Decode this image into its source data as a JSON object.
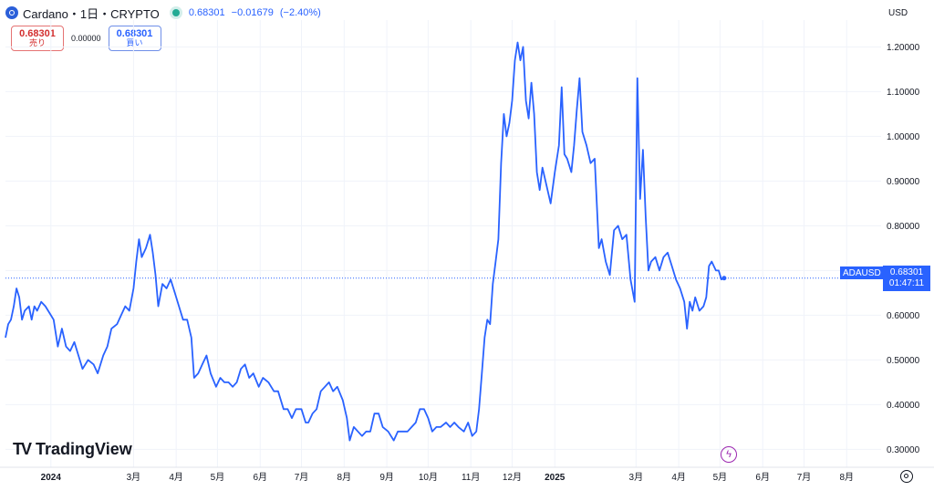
{
  "header": {
    "symbol": "Cardano・1日・CRYPTO",
    "last": "0.68301",
    "change": "−0.01679",
    "change_pct": "(−2.40%)"
  },
  "trade": {
    "sell_value": "0.68301",
    "sell_label": "売り",
    "spread": "0.00000",
    "buy_value": "0.68301",
    "buy_label": "買い"
  },
  "currency": "USD",
  "price_tag": {
    "ticker": "ADAUSD",
    "price": "0.68301",
    "countdown": "01:47:11"
  },
  "logo_text": "TradingView",
  "colors": {
    "line": "#2962ff",
    "accent": "#2962ff",
    "grid": "#f0f3fa"
  },
  "icons": [
    "cardano-logo-icon",
    "live-dot-icon",
    "tradingview-logo-icon",
    "bolt-icon",
    "settings-icon"
  ],
  "chart_data": {
    "type": "line",
    "title": "Cardano・1日・CRYPTO",
    "ylim": [
      0.26,
      1.26
    ],
    "yticks": [
      "0.30000",
      "0.40000",
      "0.50000",
      "0.60000",
      "0.70000",
      "0.80000",
      "0.90000",
      "1.00000",
      "1.10000",
      "1.20000"
    ],
    "xticks": [
      {
        "label": "2024",
        "date": "2024-01-01",
        "bold": true
      },
      {
        "label": "3月",
        "date": "2024-03-01"
      },
      {
        "label": "4月",
        "date": "2024-04-01"
      },
      {
        "label": "5月",
        "date": "2024-05-01"
      },
      {
        "label": "6月",
        "date": "2024-06-01"
      },
      {
        "label": "7月",
        "date": "2024-07-01"
      },
      {
        "label": "8月",
        "date": "2024-08-01"
      },
      {
        "label": "9月",
        "date": "2024-09-01"
      },
      {
        "label": "10月",
        "date": "2024-10-01"
      },
      {
        "label": "11月",
        "date": "2024-11-01"
      },
      {
        "label": "12月",
        "date": "2024-12-01"
      },
      {
        "label": "2025",
        "date": "2025-01-01",
        "bold": true
      },
      {
        "label": "3月",
        "date": "2025-03-01"
      },
      {
        "label": "4月",
        "date": "2025-04-01"
      },
      {
        "label": "5月",
        "date": "2025-05-01"
      },
      {
        "label": "6月",
        "date": "2025-06-01"
      },
      {
        "label": "7月",
        "date": "2025-07-01"
      },
      {
        "label": "8月",
        "date": "2025-08-01"
      }
    ],
    "x_min": "2023-11-29",
    "x_max": "2025-08-26",
    "last_value": 0.68301,
    "series": [
      {
        "values": [
          [
            "2023-11-29",
            0.55
          ],
          [
            "2023-12-01",
            0.58
          ],
          [
            "2023-12-03",
            0.59
          ],
          [
            "2023-12-05",
            0.62
          ],
          [
            "2023-12-07",
            0.66
          ],
          [
            "2023-12-09",
            0.64
          ],
          [
            "2023-12-11",
            0.59
          ],
          [
            "2023-12-13",
            0.61
          ],
          [
            "2023-12-16",
            0.62
          ],
          [
            "2023-12-18",
            0.59
          ],
          [
            "2023-12-20",
            0.62
          ],
          [
            "2023-12-22",
            0.61
          ],
          [
            "2023-12-25",
            0.63
          ],
          [
            "2023-12-28",
            0.62
          ],
          [
            "2024-01-01",
            0.6
          ],
          [
            "2024-01-03",
            0.59
          ],
          [
            "2024-01-06",
            0.53
          ],
          [
            "2024-01-09",
            0.57
          ],
          [
            "2024-01-12",
            0.53
          ],
          [
            "2024-01-15",
            0.52
          ],
          [
            "2024-01-18",
            0.54
          ],
          [
            "2024-01-21",
            0.51
          ],
          [
            "2024-01-24",
            0.48
          ],
          [
            "2024-01-28",
            0.5
          ],
          [
            "2024-02-01",
            0.49
          ],
          [
            "2024-02-04",
            0.47
          ],
          [
            "2024-02-08",
            0.51
          ],
          [
            "2024-02-11",
            0.53
          ],
          [
            "2024-02-14",
            0.57
          ],
          [
            "2024-02-18",
            0.58
          ],
          [
            "2024-02-21",
            0.6
          ],
          [
            "2024-02-24",
            0.62
          ],
          [
            "2024-02-27",
            0.61
          ],
          [
            "2024-03-01",
            0.66
          ],
          [
            "2024-03-03",
            0.72
          ],
          [
            "2024-03-05",
            0.77
          ],
          [
            "2024-03-07",
            0.73
          ],
          [
            "2024-03-10",
            0.75
          ],
          [
            "2024-03-13",
            0.78
          ],
          [
            "2024-03-15",
            0.74
          ],
          [
            "2024-03-17",
            0.69
          ],
          [
            "2024-03-19",
            0.62
          ],
          [
            "2024-03-22",
            0.67
          ],
          [
            "2024-03-25",
            0.66
          ],
          [
            "2024-03-28",
            0.68
          ],
          [
            "2024-03-31",
            0.65
          ],
          [
            "2024-04-03",
            0.62
          ],
          [
            "2024-04-06",
            0.59
          ],
          [
            "2024-04-09",
            0.59
          ],
          [
            "2024-04-12",
            0.55
          ],
          [
            "2024-04-14",
            0.46
          ],
          [
            "2024-04-17",
            0.47
          ],
          [
            "2024-04-20",
            0.49
          ],
          [
            "2024-04-23",
            0.51
          ],
          [
            "2024-04-26",
            0.47
          ],
          [
            "2024-04-30",
            0.44
          ],
          [
            "2024-05-03",
            0.46
          ],
          [
            "2024-05-06",
            0.45
          ],
          [
            "2024-05-09",
            0.45
          ],
          [
            "2024-05-12",
            0.44
          ],
          [
            "2024-05-15",
            0.45
          ],
          [
            "2024-05-18",
            0.48
          ],
          [
            "2024-05-21",
            0.49
          ],
          [
            "2024-05-24",
            0.46
          ],
          [
            "2024-05-27",
            0.47
          ],
          [
            "2024-05-31",
            0.44
          ],
          [
            "2024-06-03",
            0.46
          ],
          [
            "2024-06-07",
            0.45
          ],
          [
            "2024-06-11",
            0.43
          ],
          [
            "2024-06-14",
            0.43
          ],
          [
            "2024-06-18",
            0.39
          ],
          [
            "2024-06-21",
            0.39
          ],
          [
            "2024-06-24",
            0.37
          ],
          [
            "2024-06-27",
            0.39
          ],
          [
            "2024-07-01",
            0.39
          ],
          [
            "2024-07-04",
            0.36
          ],
          [
            "2024-07-06",
            0.36
          ],
          [
            "2024-07-09",
            0.38
          ],
          [
            "2024-07-12",
            0.39
          ],
          [
            "2024-07-15",
            0.43
          ],
          [
            "2024-07-18",
            0.44
          ],
          [
            "2024-07-21",
            0.45
          ],
          [
            "2024-07-24",
            0.43
          ],
          [
            "2024-07-27",
            0.44
          ],
          [
            "2024-07-31",
            0.41
          ],
          [
            "2024-08-03",
            0.37
          ],
          [
            "2024-08-05",
            0.32
          ],
          [
            "2024-08-08",
            0.35
          ],
          [
            "2024-08-11",
            0.34
          ],
          [
            "2024-08-14",
            0.33
          ],
          [
            "2024-08-17",
            0.34
          ],
          [
            "2024-08-20",
            0.34
          ],
          [
            "2024-08-23",
            0.38
          ],
          [
            "2024-08-26",
            0.38
          ],
          [
            "2024-08-29",
            0.35
          ],
          [
            "2024-09-02",
            0.34
          ],
          [
            "2024-09-06",
            0.32
          ],
          [
            "2024-09-09",
            0.34
          ],
          [
            "2024-09-12",
            0.34
          ],
          [
            "2024-09-16",
            0.34
          ],
          [
            "2024-09-19",
            0.35
          ],
          [
            "2024-09-22",
            0.36
          ],
          [
            "2024-09-25",
            0.39
          ],
          [
            "2024-09-28",
            0.39
          ],
          [
            "2024-10-01",
            0.37
          ],
          [
            "2024-10-04",
            0.34
          ],
          [
            "2024-10-07",
            0.35
          ],
          [
            "2024-10-10",
            0.35
          ],
          [
            "2024-10-14",
            0.36
          ],
          [
            "2024-10-17",
            0.35
          ],
          [
            "2024-10-20",
            0.36
          ],
          [
            "2024-10-23",
            0.35
          ],
          [
            "2024-10-27",
            0.34
          ],
          [
            "2024-10-30",
            0.36
          ],
          [
            "2024-11-02",
            0.33
          ],
          [
            "2024-11-05",
            0.34
          ],
          [
            "2024-11-07",
            0.39
          ],
          [
            "2024-11-09",
            0.47
          ],
          [
            "2024-11-11",
            0.55
          ],
          [
            "2024-11-13",
            0.59
          ],
          [
            "2024-11-15",
            0.58
          ],
          [
            "2024-11-17",
            0.67
          ],
          [
            "2024-11-19",
            0.72
          ],
          [
            "2024-11-21",
            0.77
          ],
          [
            "2024-11-23",
            0.94
          ],
          [
            "2024-11-25",
            1.05
          ],
          [
            "2024-11-27",
            1.0
          ],
          [
            "2024-11-29",
            1.03
          ],
          [
            "2024-12-01",
            1.08
          ],
          [
            "2024-12-03",
            1.17
          ],
          [
            "2024-12-05",
            1.21
          ],
          [
            "2024-12-07",
            1.17
          ],
          [
            "2024-12-09",
            1.2
          ],
          [
            "2024-12-11",
            1.08
          ],
          [
            "2024-12-13",
            1.04
          ],
          [
            "2024-12-15",
            1.12
          ],
          [
            "2024-12-17",
            1.05
          ],
          [
            "2024-12-19",
            0.92
          ],
          [
            "2024-12-21",
            0.88
          ],
          [
            "2024-12-23",
            0.93
          ],
          [
            "2024-12-26",
            0.89
          ],
          [
            "2024-12-29",
            0.85
          ],
          [
            "2025-01-01",
            0.92
          ],
          [
            "2025-01-04",
            0.98
          ],
          [
            "2025-01-06",
            1.11
          ],
          [
            "2025-01-08",
            0.96
          ],
          [
            "2025-01-10",
            0.95
          ],
          [
            "2025-01-13",
            0.92
          ],
          [
            "2025-01-15",
            0.98
          ],
          [
            "2025-01-17",
            1.06
          ],
          [
            "2025-01-19",
            1.13
          ],
          [
            "2025-01-21",
            1.01
          ],
          [
            "2025-01-24",
            0.98
          ],
          [
            "2025-01-27",
            0.94
          ],
          [
            "2025-01-30",
            0.95
          ],
          [
            "2025-02-02",
            0.75
          ],
          [
            "2025-02-04",
            0.77
          ],
          [
            "2025-02-07",
            0.72
          ],
          [
            "2025-02-10",
            0.69
          ],
          [
            "2025-02-13",
            0.79
          ],
          [
            "2025-02-16",
            0.8
          ],
          [
            "2025-02-19",
            0.77
          ],
          [
            "2025-02-22",
            0.78
          ],
          [
            "2025-02-25",
            0.68
          ],
          [
            "2025-02-28",
            0.63
          ],
          [
            "2025-03-02",
            1.13
          ],
          [
            "2025-03-04",
            0.86
          ],
          [
            "2025-03-06",
            0.97
          ],
          [
            "2025-03-08",
            0.82
          ],
          [
            "2025-03-10",
            0.7
          ],
          [
            "2025-03-12",
            0.72
          ],
          [
            "2025-03-15",
            0.73
          ],
          [
            "2025-03-18",
            0.7
          ],
          [
            "2025-03-21",
            0.73
          ],
          [
            "2025-03-24",
            0.74
          ],
          [
            "2025-03-27",
            0.71
          ],
          [
            "2025-03-30",
            0.68
          ],
          [
            "2025-04-02",
            0.66
          ],
          [
            "2025-04-05",
            0.63
          ],
          [
            "2025-04-07",
            0.57
          ],
          [
            "2025-04-09",
            0.63
          ],
          [
            "2025-04-11",
            0.61
          ],
          [
            "2025-04-13",
            0.64
          ],
          [
            "2025-04-16",
            0.61
          ],
          [
            "2025-04-19",
            0.62
          ],
          [
            "2025-04-21",
            0.64
          ],
          [
            "2025-04-23",
            0.71
          ],
          [
            "2025-04-25",
            0.72
          ],
          [
            "2025-04-28",
            0.7
          ],
          [
            "2025-04-30",
            0.7
          ],
          [
            "2025-05-02",
            0.68
          ],
          [
            "2025-05-04",
            0.68301
          ]
        ]
      }
    ]
  }
}
